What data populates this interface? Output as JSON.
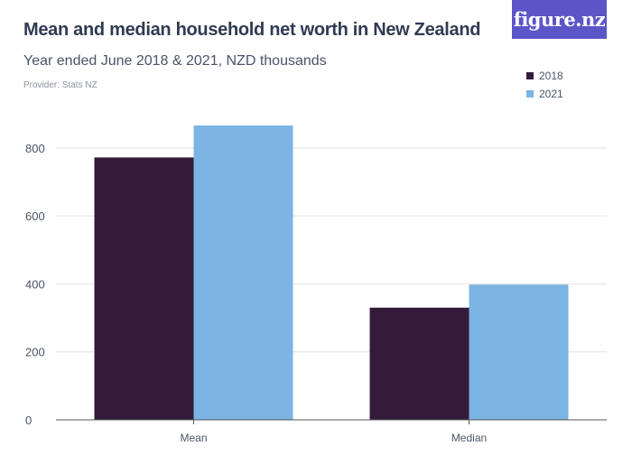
{
  "header": {
    "title": "Mean and median household net worth in New Zealand",
    "subtitle": "Year ended June 2018 & 2021, NZD thousands",
    "provider": "Provider: Stats NZ",
    "logo_text": "figure.nz"
  },
  "colors": {
    "s2018": "#341b3a",
    "s2021": "#7cb4e3",
    "grid": "#e3e3e3",
    "axis": "#555555",
    "brand": "#5b55c8"
  },
  "chart_data": {
    "type": "bar",
    "title": "Mean and median household net worth in New Zealand",
    "subtitle": "Year ended June 2018 & 2021, NZD thousands",
    "xlabel": "",
    "ylabel": "",
    "categories": [
      "Mean",
      "Median"
    ],
    "series": [
      {
        "name": "2018",
        "values": [
          772,
          330
        ]
      },
      {
        "name": "2021",
        "values": [
          866,
          398
        ]
      }
    ],
    "ylim": [
      0,
      866
    ],
    "yticks": [
      0,
      200,
      400,
      600,
      800
    ],
    "grid": true,
    "legend": "top-right"
  }
}
